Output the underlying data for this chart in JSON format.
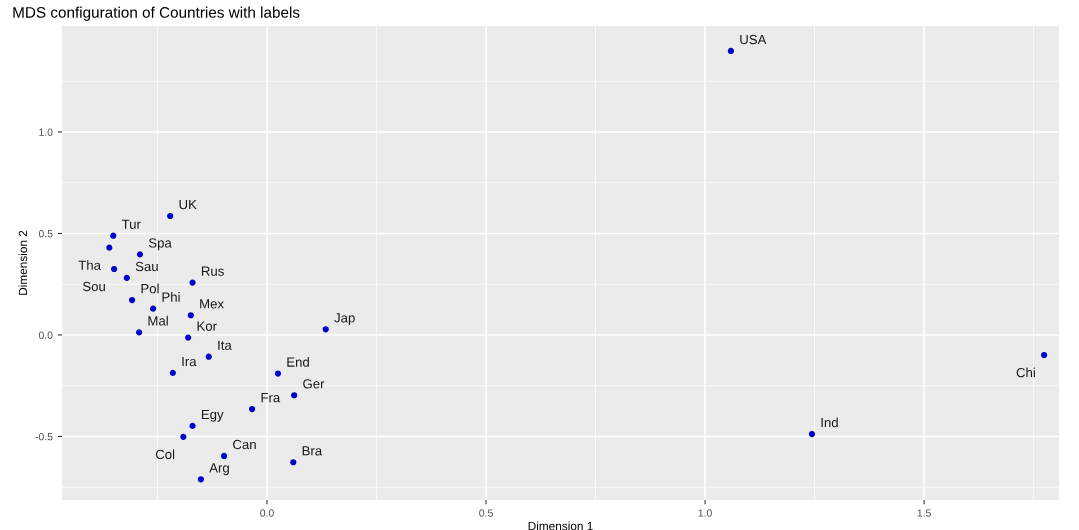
{
  "chart_data": {
    "type": "scatter",
    "title": "MDS configuration of Countries with labels",
    "xlabel": "Dimension 1",
    "ylabel": "Dimension 2",
    "xlim": [
      -0.468,
      1.808
    ],
    "ylim": [
      -0.813,
      1.522
    ],
    "xticks": [
      {
        "value": 0,
        "label": "0.0"
      },
      {
        "value": 0.5,
        "label": "0.5"
      },
      {
        "value": 1,
        "label": "1.0"
      },
      {
        "value": 1.5,
        "label": "1.5"
      }
    ],
    "yticks": [
      {
        "value": -0.5,
        "label": "-0.5"
      },
      {
        "value": 0,
        "label": "0.0"
      },
      {
        "value": 0.5,
        "label": "0.5"
      },
      {
        "value": 1,
        "label": "1.0"
      }
    ],
    "grid": true,
    "legend": false,
    "marker": "circle",
    "series": [
      {
        "color": "#0000cc",
        "x": [
          -0.221,
          -0.351,
          -0.36,
          -0.29,
          -0.349,
          -0.32,
          -0.17,
          -0.308,
          -0.26,
          -0.174,
          -0.292,
          -0.18,
          -0.133,
          -0.215,
          0.025,
          0.062,
          -0.034,
          -0.17,
          -0.191,
          -0.098,
          0.06,
          -0.151,
          0.134,
          1.059,
          1.244,
          1.774
        ],
        "values": [
          0.586,
          0.489,
          0.43,
          0.397,
          0.325,
          0.281,
          0.258,
          0.172,
          0.13,
          0.097,
          0.013,
          -0.013,
          -0.107,
          -0.187,
          -0.19,
          -0.297,
          -0.365,
          -0.448,
          -0.502,
          -0.596,
          -0.627,
          -0.711,
          0.028,
          1.399,
          -0.488,
          -0.099
        ],
        "value_labels": [
          "UK",
          "Tur",
          "Tha",
          "Spa",
          "Sou",
          "Sau",
          "Rus",
          "Pol",
          "Phi",
          "Mex",
          "Mal",
          "Kor",
          "Ita",
          "Ira",
          "End",
          "Ger",
          "Fra",
          "Egy",
          "Col",
          "Can",
          "Bra",
          "Arg",
          "Jap",
          "USA",
          "Ind",
          "Chi"
        ]
      }
    ]
  }
}
